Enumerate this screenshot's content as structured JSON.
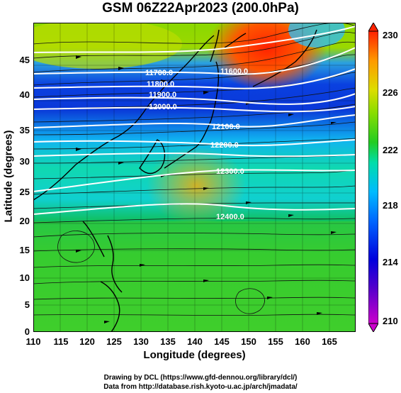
{
  "title": "GSM 06Z22Apr2023 (200.0hPa)",
  "axes": {
    "xlabel": "Longitude (degrees)",
    "ylabel": "Latitude  (degrees)",
    "xticks": [
      "110",
      "115",
      "120",
      "125",
      "130",
      "135",
      "140",
      "145",
      "150",
      "155",
      "160",
      "165"
    ],
    "yticks": [
      "0",
      "5",
      "10",
      "15",
      "20",
      "25",
      "30",
      "35",
      "40",
      "45"
    ],
    "xlim": [
      110,
      170
    ],
    "ylim": [
      0,
      50
    ]
  },
  "colorbar": {
    "ticks": [
      "210",
      "214",
      "218",
      "222",
      "226",
      "230"
    ],
    "range": [
      210,
      230
    ],
    "colors": [
      "#cc00cc",
      "#3300cc",
      "#0033ff",
      "#00aaff",
      "#00e0c0",
      "#22cc22",
      "#88dd00",
      "#dddd00",
      "#ff9900",
      "#ff3300"
    ]
  },
  "contours": [
    {
      "label": "11700.0"
    },
    {
      "label": "11800.0"
    },
    {
      "label": "11900.0"
    },
    {
      "label": "12000.0"
    },
    {
      "label": "12100.0"
    },
    {
      "label": "12200.0"
    },
    {
      "label": "12300.0"
    },
    {
      "label": "12400.0"
    },
    {
      "label": "11600.0"
    }
  ],
  "credits": {
    "line1": "Drawing by DCL (https://www.gfd-dennou.org/library/dcl/)",
    "line2": "Data from http://database.rish.kyoto-u.ac.jp/arch/jmadata/"
  }
}
